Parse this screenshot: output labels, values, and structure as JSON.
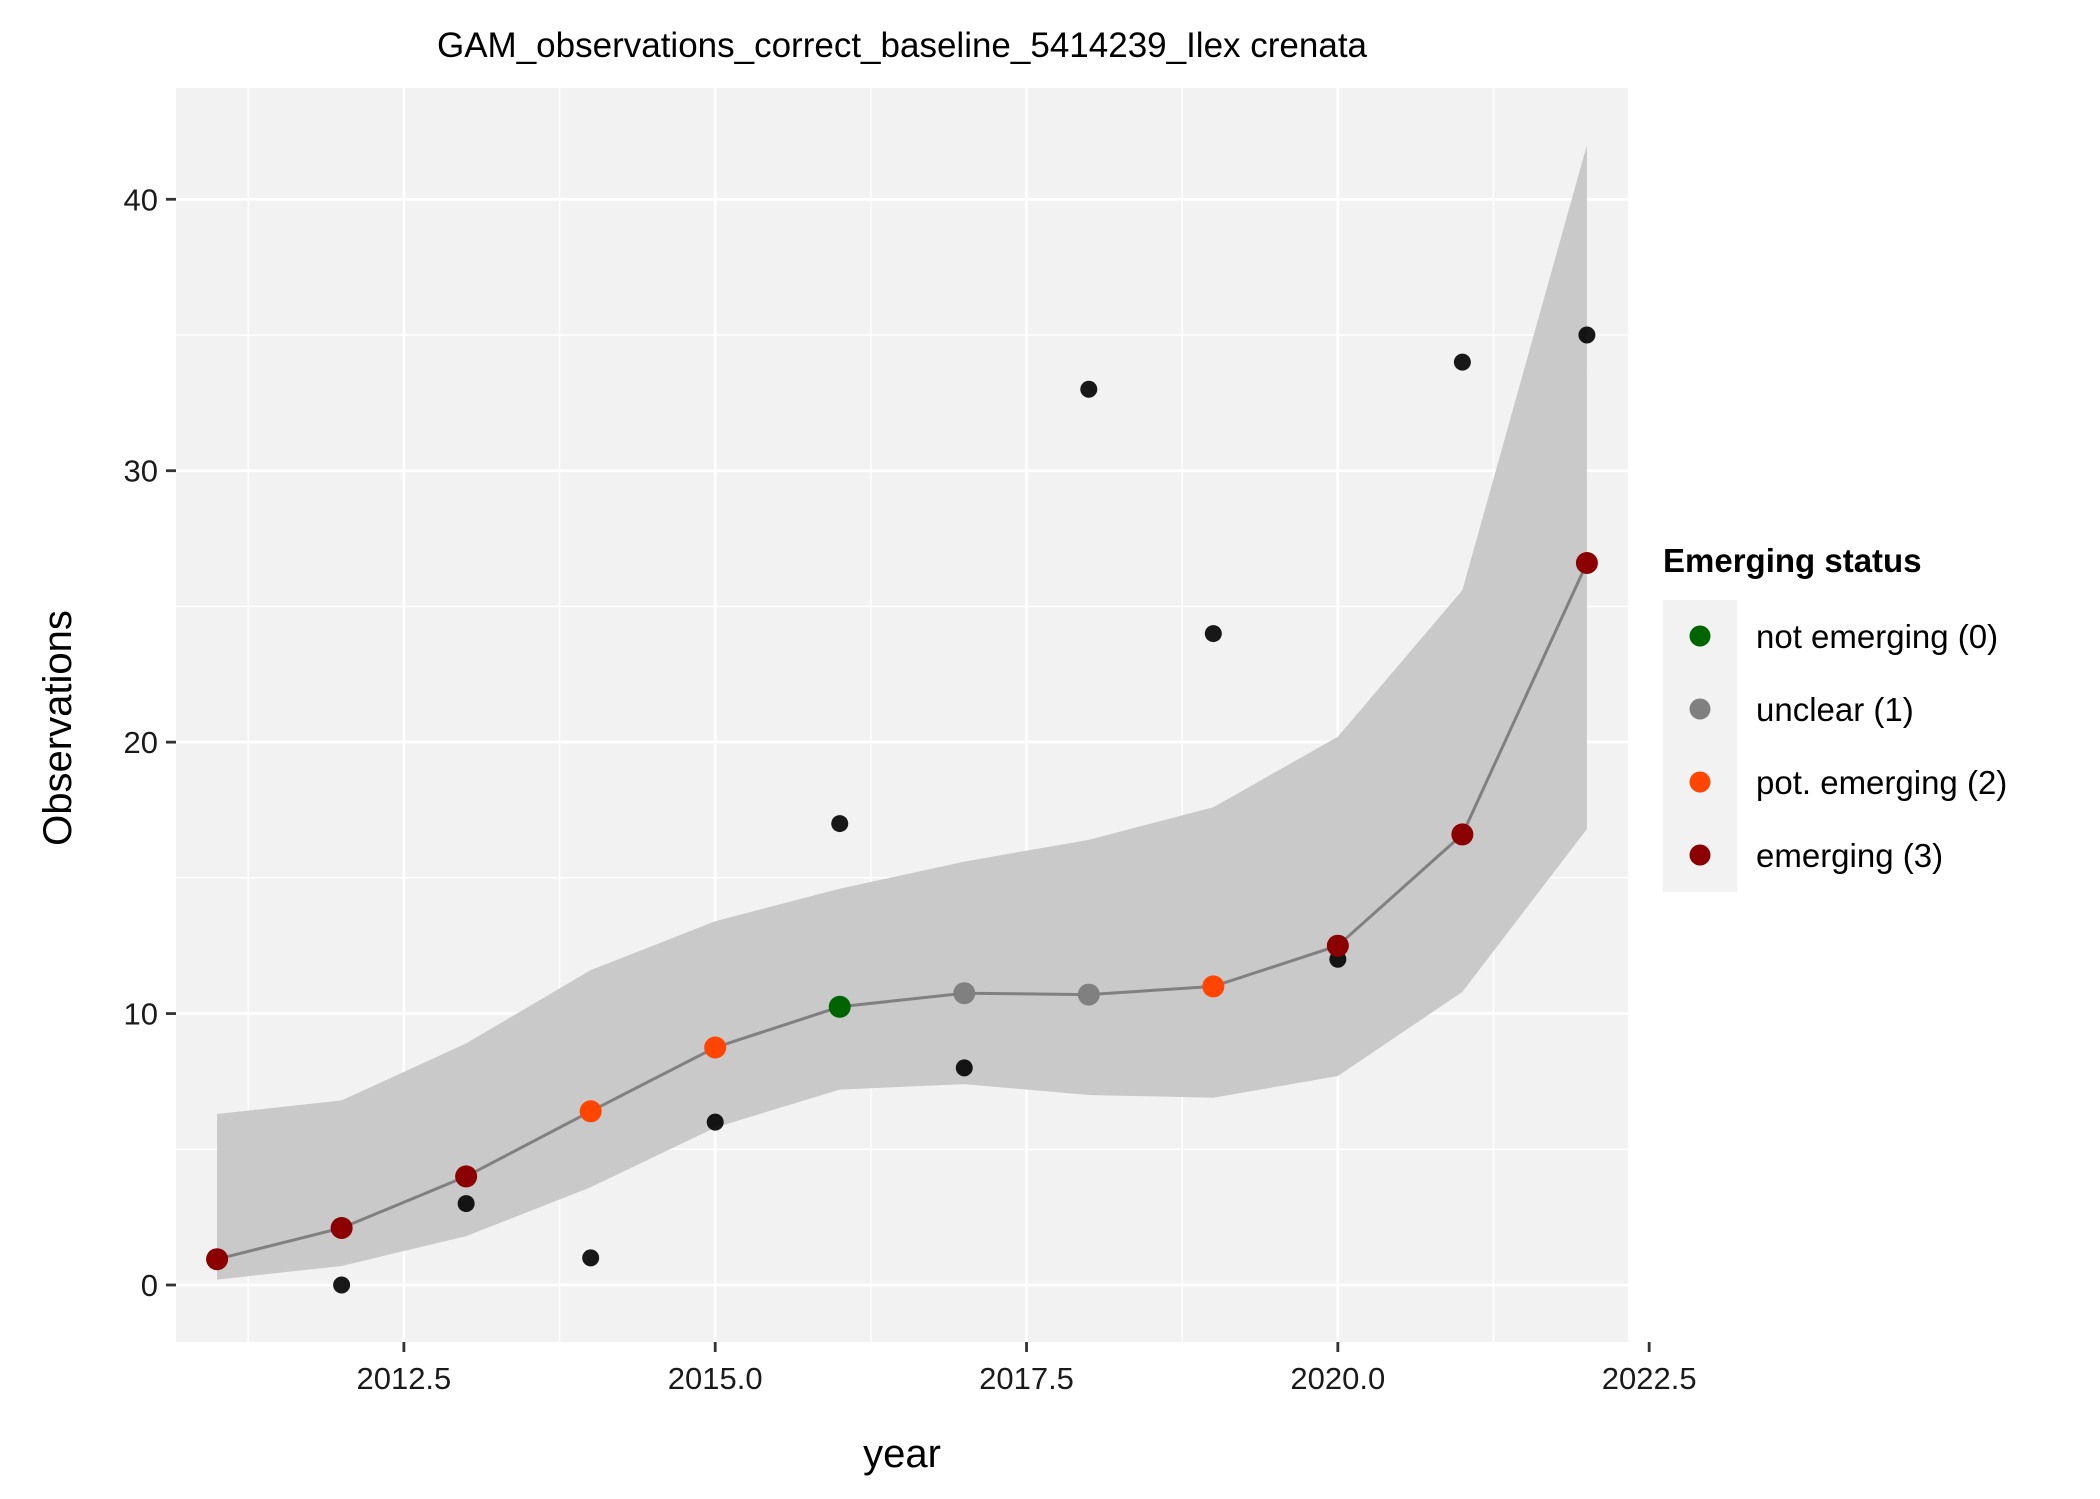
{
  "chart_data": {
    "type": "line",
    "title": "GAM_observations_correct_baseline_5414239_Ilex crenata",
    "xlabel": "year",
    "ylabel": "Observations",
    "xlim": [
      2010.67,
      2022.33
    ],
    "ylim": [
      -2.1,
      44.1
    ],
    "x_ticks": [
      {
        "value": 2012.5,
        "label": "2012.5"
      },
      {
        "value": 2015.0,
        "label": "2015.0"
      },
      {
        "value": 2017.5,
        "label": "2017.5"
      },
      {
        "value": 2020.0,
        "label": "2020.0"
      },
      {
        "value": 2022.5,
        "label": "2022.5"
      }
    ],
    "y_ticks": [
      {
        "value": 0,
        "label": "0"
      },
      {
        "value": 10,
        "label": "10"
      },
      {
        "value": 20,
        "label": "20"
      },
      {
        "value": 30,
        "label": "30"
      },
      {
        "value": 40,
        "label": "40"
      }
    ],
    "grid": true,
    "background": "#f2f2f2",
    "observed": {
      "x": [
        2011,
        2012,
        2013,
        2014,
        2015,
        2016,
        2017,
        2018,
        2019,
        2020,
        2021,
        2022
      ],
      "y": [
        1,
        0,
        3,
        1,
        6,
        17,
        8,
        33,
        24,
        12,
        34,
        35
      ],
      "color": "#000000"
    },
    "fit": {
      "x": [
        2011,
        2012,
        2013,
        2014,
        2015,
        2016,
        2017,
        2018,
        2019,
        2020,
        2021,
        2022
      ],
      "y": [
        0.95,
        2.1,
        4.0,
        6.4,
        8.75,
        10.25,
        10.75,
        10.7,
        11.0,
        12.5,
        16.6,
        26.6
      ],
      "lower": [
        0.2,
        0.7,
        1.8,
        3.6,
        5.8,
        7.2,
        7.4,
        7.0,
        6.9,
        7.7,
        10.8,
        16.8
      ],
      "upper": [
        6.3,
        6.8,
        8.9,
        11.6,
        13.4,
        14.6,
        15.6,
        16.4,
        17.6,
        20.2,
        25.6,
        42.0
      ],
      "status": [
        3,
        3,
        3,
        2,
        2,
        0,
        1,
        1,
        2,
        3,
        3,
        3
      ],
      "line_color": "#808080",
      "band_color": "#c6c6c6"
    },
    "legend": {
      "title": "Emerging status",
      "placement": "right",
      "entries": [
        {
          "code": 0,
          "label": "not emerging (0)",
          "color": "#006400"
        },
        {
          "code": 1,
          "label": "unclear (1)",
          "color": "#808080"
        },
        {
          "code": 2,
          "label": "pot. emerging (2)",
          "color": "#ff4500"
        },
        {
          "code": 3,
          "label": "emerging (3)",
          "color": "#8b0000"
        }
      ]
    }
  }
}
